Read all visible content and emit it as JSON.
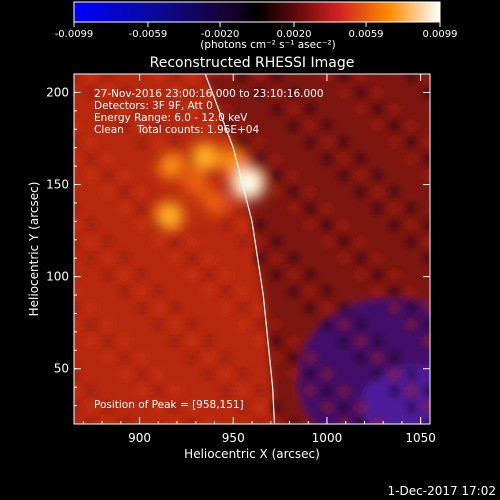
{
  "chart_data": {
    "type": "heatmap",
    "title": "Reconstructed RHESSI Image",
    "xlabel": "Heliocentric X (arcsec)",
    "ylabel": "Heliocentric Y (arcsec)",
    "xlim": [
      865,
      1055
    ],
    "ylim": [
      20,
      210
    ],
    "x_ticks": [
      900,
      950,
      1000,
      1050
    ],
    "y_ticks": [
      50,
      100,
      150,
      200
    ],
    "colorbar": {
      "label": "(photons cm⁻² s⁻¹ asec⁻²)",
      "range": [
        -0.0099,
        0.0099
      ],
      "ticks": [
        "-0.0099",
        "-0.0059",
        "-0.0020",
        "0.0020",
        "0.0059",
        "0.0099"
      ],
      "tick_values": [
        -0.0099,
        -0.0059,
        -0.002,
        0.002,
        0.0059,
        0.0099
      ]
    },
    "annotations": {
      "time": "27-Nov-2016 23:00:16.000 to 23:10:16.000",
      "detectors": "Detectors: 3F 9F, Att 0",
      "energy": "Energy Range: 6.0 - 12.0 keV",
      "method": "Clean    Total counts: 1.96E+04",
      "peak": "Position of Peak = [958,151]"
    },
    "peak": [
      958,
      151
    ],
    "sources": [
      {
        "x": 958,
        "y": 151,
        "value": 0.0099
      },
      {
        "x": 935,
        "y": 165,
        "value": 0.0072
      },
      {
        "x": 917,
        "y": 160,
        "value": 0.0066
      },
      {
        "x": 950,
        "y": 163,
        "value": 0.0068
      },
      {
        "x": 916,
        "y": 133,
        "value": 0.007
      },
      {
        "x": 930,
        "y": 150,
        "value": 0.0058
      },
      {
        "x": 940,
        "y": 140,
        "value": 0.0055
      }
    ],
    "limb": [
      [
        935,
        210
      ],
      [
        950,
        170
      ],
      [
        960,
        130
      ],
      [
        966,
        90
      ],
      [
        971,
        40
      ],
      [
        972,
        20
      ]
    ]
  },
  "footer": {
    "date": "1-Dec-2017 17:02"
  }
}
